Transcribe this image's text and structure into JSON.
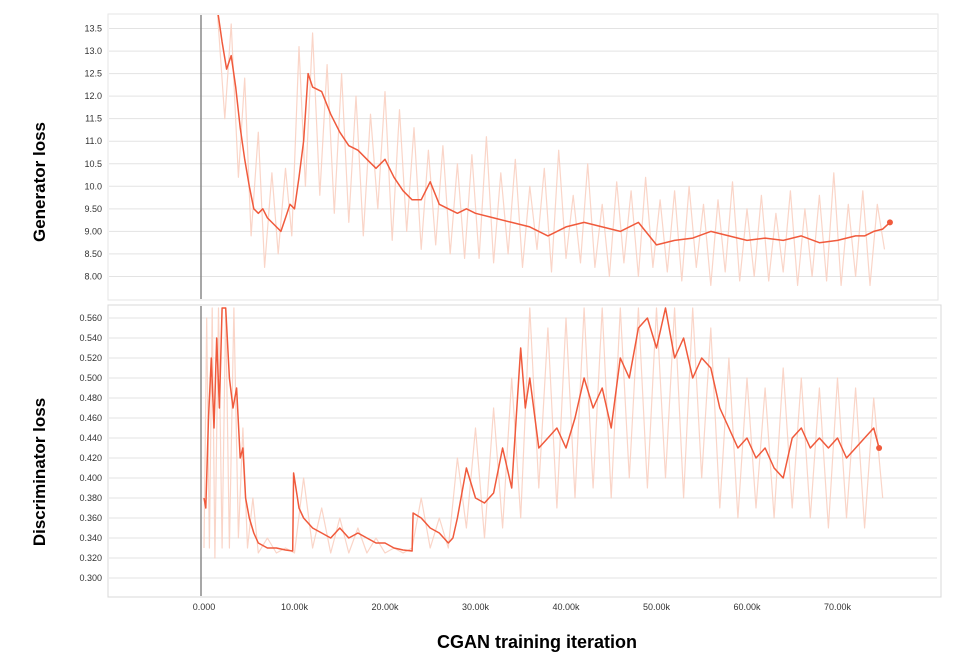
{
  "chart_data": [
    {
      "type": "line",
      "ylabel": "Generator loss",
      "xlabel": "CGAN training iteration",
      "x_unit": "iterations",
      "xlim": [
        -10500,
        81000
      ],
      "ylim": [
        7.5,
        13.8
      ],
      "yticks": [
        "8.00",
        "8.50",
        "9.00",
        "9.50",
        "10.0",
        "10.5",
        "11.0",
        "11.5",
        "12.0",
        "12.5",
        "13.0",
        "13.5"
      ],
      "ytick_values": [
        8.0,
        8.5,
        9.0,
        9.5,
        10.0,
        10.5,
        11.0,
        11.5,
        12.0,
        12.5,
        13.0,
        13.5
      ],
      "grid": true,
      "series": [
        {
          "kind": "smoothed",
          "color": "#f05a3c",
          "x": [
            1500,
            2000,
            2500,
            3000,
            3500,
            4000,
            4500,
            5000,
            5500,
            6000,
            6500,
            7000,
            7500,
            8000,
            8500,
            9000,
            9500,
            10000,
            10500,
            11000,
            11500,
            12000,
            13000,
            14000,
            15000,
            16000,
            17000,
            18000,
            19000,
            20000,
            21000,
            22000,
            23000,
            24000,
            25000,
            26000,
            27000,
            28000,
            29000,
            30000,
            32000,
            34000,
            36000,
            38000,
            40000,
            42000,
            44000,
            46000,
            48000,
            50000,
            52000,
            54000,
            56000,
            58000,
            60000,
            62000,
            64000,
            66000,
            68000,
            70000,
            72000,
            73000,
            74000,
            75000,
            75800
          ],
          "y": [
            13.9,
            13.2,
            12.6,
            12.9,
            12.2,
            11.3,
            10.6,
            10.0,
            9.5,
            9.4,
            9.5,
            9.3,
            9.2,
            9.1,
            9.0,
            9.3,
            9.6,
            9.5,
            10.2,
            11.0,
            12.5,
            12.2,
            12.1,
            11.6,
            11.2,
            10.9,
            10.8,
            10.6,
            10.4,
            10.6,
            10.2,
            9.9,
            9.7,
            9.7,
            10.1,
            9.6,
            9.5,
            9.4,
            9.5,
            9.4,
            9.3,
            9.2,
            9.1,
            8.9,
            9.1,
            9.2,
            9.1,
            9.0,
            9.2,
            8.7,
            8.8,
            8.85,
            9.0,
            8.9,
            8.8,
            8.85,
            8.8,
            8.9,
            8.75,
            8.8,
            8.9,
            8.9,
            9.0,
            9.05,
            9.2
          ]
        },
        {
          "kind": "raw",
          "color": "#f9d0c2",
          "x": [
            1500,
            2300,
            3000,
            3800,
            4500,
            5200,
            6000,
            6700,
            7500,
            8200,
            9000,
            9700,
            10500,
            11200,
            12000,
            12800,
            13600,
            14400,
            15200,
            16000,
            16800,
            17600,
            18400,
            19200,
            20000,
            20800,
            21600,
            22400,
            23200,
            24000,
            24800,
            25600,
            26400,
            27200,
            28000,
            28800,
            29600,
            30400,
            31200,
            32000,
            32800,
            33600,
            34400,
            35200,
            36000,
            36800,
            37600,
            38400,
            39200,
            40000,
            40800,
            41600,
            42400,
            43200,
            44000,
            44800,
            45600,
            46400,
            47200,
            48000,
            48800,
            49600,
            50400,
            51200,
            52000,
            52800,
            53600,
            54400,
            55200,
            56000,
            56800,
            57600,
            58400,
            59200,
            60000,
            60800,
            61600,
            62400,
            63200,
            64000,
            64800,
            65600,
            66400,
            67200,
            68000,
            68800,
            69600,
            70400,
            71200,
            72000,
            72800,
            73600,
            74400,
            75200
          ],
          "y": [
            13.8,
            11.5,
            13.6,
            10.2,
            12.4,
            8.9,
            11.2,
            8.2,
            10.3,
            8.5,
            10.4,
            8.9,
            13.1,
            10.0,
            13.4,
            9.8,
            12.7,
            9.4,
            12.5,
            9.2,
            12.0,
            8.9,
            11.6,
            9.5,
            12.1,
            8.8,
            11.7,
            9.0,
            11.3,
            8.6,
            10.8,
            8.7,
            10.9,
            8.5,
            10.5,
            8.4,
            10.7,
            8.4,
            11.1,
            8.3,
            10.3,
            8.5,
            10.6,
            8.2,
            10.0,
            8.6,
            10.4,
            8.1,
            10.8,
            8.4,
            9.8,
            8.3,
            10.5,
            8.2,
            9.6,
            8.0,
            10.1,
            8.3,
            9.9,
            8.0,
            10.2,
            8.2,
            9.7,
            8.1,
            9.9,
            7.9,
            10.0,
            8.2,
            9.6,
            7.8,
            9.7,
            8.1,
            10.1,
            7.9,
            9.5,
            8.0,
            9.8,
            7.9,
            9.4,
            8.1,
            9.9,
            7.8,
            9.5,
            8.0,
            9.8,
            7.9,
            10.3,
            7.8,
            9.6,
            8.0,
            9.9,
            7.8,
            9.6,
            8.6
          ]
        }
      ]
    },
    {
      "type": "line",
      "ylabel": "Discriminator loss",
      "xlabel": "CGAN training iteration",
      "x_unit": "iterations",
      "xlim": [
        -10500,
        81000
      ],
      "ylim": [
        0.282,
        0.572
      ],
      "yticks": [
        "0.300",
        "0.320",
        "0.340",
        "0.360",
        "0.380",
        "0.400",
        "0.420",
        "0.440",
        "0.460",
        "0.480",
        "0.500",
        "0.520",
        "0.540",
        "0.560"
      ],
      "ytick_values": [
        0.3,
        0.32,
        0.34,
        0.36,
        0.38,
        0.4,
        0.42,
        0.44,
        0.46,
        0.48,
        0.5,
        0.52,
        0.54,
        0.56
      ],
      "xticks": [
        "0.000",
        "10.00k",
        "20.00k",
        "30.00k",
        "40.00k",
        "50.00k",
        "60.00k",
        "70.00k"
      ],
      "xtick_values": [
        0,
        10000,
        20000,
        30000,
        40000,
        50000,
        60000,
        70000
      ],
      "grid": true,
      "series": [
        {
          "kind": "smoothed",
          "color": "#f05a3c",
          "x": [
            0,
            200,
            500,
            800,
            1100,
            1400,
            1700,
            2000,
            2400,
            2800,
            3200,
            3600,
            4000,
            4300,
            4600,
            5000,
            5500,
            6000,
            7000,
            8000,
            9000,
            9800,
            9900,
            10500,
            11000,
            12000,
            13000,
            14000,
            15000,
            16000,
            17000,
            18000,
            19000,
            20000,
            21000,
            22000,
            23000,
            23100,
            24000,
            25000,
            26000,
            27000,
            27500,
            28000,
            29000,
            30000,
            31000,
            32000,
            33000,
            34000,
            35000,
            35500,
            36000,
            37000,
            38000,
            39000,
            40000,
            41000,
            42000,
            43000,
            44000,
            45000,
            46000,
            47000,
            48000,
            49000,
            50000,
            51000,
            52000,
            53000,
            54000,
            55000,
            56000,
            57000,
            58000,
            59000,
            60000,
            61000,
            62000,
            63000,
            64000,
            65000,
            66000,
            67000,
            68000,
            69000,
            70000,
            71000,
            72000,
            73000,
            74000,
            74600
          ],
          "y": [
            0.38,
            0.37,
            0.46,
            0.52,
            0.45,
            0.54,
            0.47,
            0.57,
            0.57,
            0.5,
            0.47,
            0.49,
            0.42,
            0.43,
            0.38,
            0.36,
            0.345,
            0.335,
            0.33,
            0.33,
            0.328,
            0.327,
            0.405,
            0.37,
            0.36,
            0.35,
            0.345,
            0.34,
            0.35,
            0.34,
            0.345,
            0.34,
            0.335,
            0.335,
            0.33,
            0.328,
            0.327,
            0.365,
            0.36,
            0.35,
            0.345,
            0.335,
            0.34,
            0.36,
            0.41,
            0.38,
            0.375,
            0.385,
            0.43,
            0.39,
            0.53,
            0.47,
            0.5,
            0.43,
            0.44,
            0.45,
            0.43,
            0.46,
            0.5,
            0.47,
            0.49,
            0.45,
            0.52,
            0.5,
            0.55,
            0.56,
            0.53,
            0.57,
            0.52,
            0.54,
            0.5,
            0.52,
            0.51,
            0.47,
            0.45,
            0.43,
            0.44,
            0.42,
            0.43,
            0.41,
            0.4,
            0.44,
            0.45,
            0.43,
            0.44,
            0.43,
            0.44,
            0.42,
            0.43,
            0.44,
            0.45,
            0.43
          ]
        },
        {
          "kind": "raw",
          "color": "#f9d0c2",
          "x": [
            0,
            300,
            600,
            900,
            1200,
            1600,
            2000,
            2400,
            2800,
            3300,
            3800,
            4300,
            4800,
            5400,
            6000,
            7000,
            8000,
            9000,
            10000,
            11000,
            12000,
            13000,
            14000,
            15000,
            16000,
            17000,
            18000,
            19000,
            20000,
            21000,
            22000,
            23000,
            24000,
            25000,
            26000,
            27000,
            28000,
            29000,
            30000,
            31000,
            32000,
            33000,
            34000,
            35000,
            36000,
            37000,
            38000,
            39000,
            40000,
            41000,
            42000,
            43000,
            44000,
            45000,
            46000,
            47000,
            48000,
            49000,
            50000,
            51000,
            52000,
            53000,
            54000,
            55000,
            56000,
            57000,
            58000,
            59000,
            60000,
            61000,
            62000,
            63000,
            64000,
            65000,
            66000,
            67000,
            68000,
            69000,
            70000,
            71000,
            72000,
            73000,
            74000,
            75000
          ],
          "y": [
            0.33,
            0.56,
            0.33,
            0.57,
            0.32,
            0.57,
            0.33,
            0.57,
            0.33,
            0.57,
            0.34,
            0.45,
            0.33,
            0.38,
            0.325,
            0.34,
            0.325,
            0.33,
            0.325,
            0.4,
            0.33,
            0.37,
            0.325,
            0.36,
            0.325,
            0.35,
            0.325,
            0.34,
            0.325,
            0.33,
            0.325,
            0.33,
            0.38,
            0.33,
            0.36,
            0.33,
            0.42,
            0.35,
            0.45,
            0.34,
            0.47,
            0.35,
            0.5,
            0.36,
            0.57,
            0.39,
            0.55,
            0.37,
            0.56,
            0.38,
            0.57,
            0.39,
            0.57,
            0.38,
            0.57,
            0.4,
            0.57,
            0.39,
            0.57,
            0.4,
            0.57,
            0.38,
            0.57,
            0.4,
            0.55,
            0.37,
            0.52,
            0.36,
            0.5,
            0.37,
            0.49,
            0.36,
            0.51,
            0.37,
            0.5,
            0.36,
            0.49,
            0.35,
            0.5,
            0.36,
            0.49,
            0.35,
            0.48,
            0.38
          ]
        }
      ]
    }
  ]
}
